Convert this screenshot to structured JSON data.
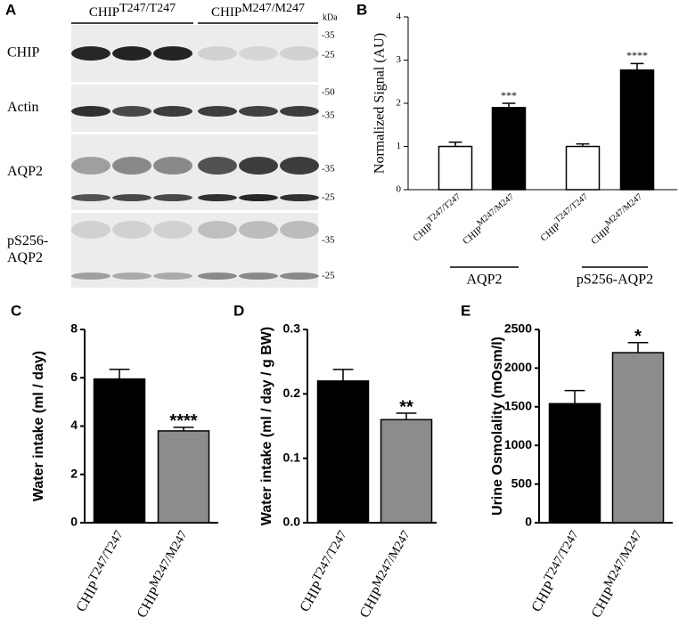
{
  "blot": {
    "panel": "A",
    "unit": "kDa",
    "groups": [
      {
        "base": "CHIP",
        "sup": "T247/T247"
      },
      {
        "base": "CHIP",
        "sup": "M247/M247"
      }
    ],
    "rows": [
      {
        "label": [
          "CHIP"
        ],
        "markers": [
          "-35",
          "-25"
        ]
      },
      {
        "label": [
          "Actin"
        ],
        "markers": [
          "-50",
          "-35"
        ]
      },
      {
        "label": [
          "AQP2"
        ],
        "markers": [
          "-35",
          "-25"
        ]
      },
      {
        "label": [
          "pS256-",
          "AQP2"
        ],
        "markers": [
          "-35",
          "-25"
        ]
      }
    ]
  },
  "chart_data": [
    {
      "type": "bar",
      "panel": "B",
      "y_label": "Normalized Signal (AU)",
      "categories": [
        {
          "base": "CHIP",
          "sup": "T247/T247"
        },
        {
          "base": "CHIP",
          "sup": "M247/M247"
        },
        {
          "base": "CHIP",
          "sup": "T247/T247"
        },
        {
          "base": "CHIP",
          "sup": "M247/M247"
        }
      ],
      "values": [
        1.0,
        1.9,
        1.0,
        2.77
      ],
      "errors": [
        0.1,
        0.1,
        0.06,
        0.15
      ],
      "colors": [
        "#ffffff",
        "#000000",
        "#ffffff",
        "#000000"
      ],
      "significance": [
        null,
        "***",
        null,
        "****"
      ],
      "group_labels": [
        "AQP2",
        "pS256-AQP2"
      ],
      "ylim": [
        0,
        4
      ],
      "yticks": [
        0,
        1,
        2,
        3,
        4
      ]
    },
    {
      "type": "bar",
      "panel": "C",
      "y_label": "Water intake (ml / day)",
      "categories": [
        {
          "base": "CHIP",
          "sup": "T247/T247"
        },
        {
          "base": "CHIP",
          "sup": "M247/M247"
        }
      ],
      "values": [
        5.95,
        3.8
      ],
      "errors": [
        0.4,
        0.15
      ],
      "colors": [
        "#000000",
        "#8c8c8c"
      ],
      "significance": [
        null,
        "****"
      ],
      "ylim": [
        0,
        8
      ],
      "yticks": [
        0,
        2,
        4,
        6,
        8
      ]
    },
    {
      "type": "bar",
      "panel": "D",
      "y_label": "Water intake (ml / day / g BW)",
      "categories": [
        {
          "base": "CHIP",
          "sup": "T247/T247"
        },
        {
          "base": "CHIP",
          "sup": "M247/M247"
        }
      ],
      "values": [
        0.22,
        0.16
      ],
      "errors": [
        0.018,
        0.01
      ],
      "colors": [
        "#000000",
        "#8c8c8c"
      ],
      "significance": [
        null,
        "**"
      ],
      "ylim": [
        0,
        0.3
      ],
      "yticks": [
        {
          "value": 0,
          "label": "0.0"
        },
        0.1,
        0.2,
        0.3
      ]
    },
    {
      "type": "bar",
      "panel": "E",
      "y_label": "Urine Osmolality (mOsm/l)",
      "categories": [
        {
          "base": "CHIP",
          "sup": "T247/T247"
        },
        {
          "base": "CHIP",
          "sup": "M247/M247"
        }
      ],
      "values": [
        1540,
        2200
      ],
      "errors": [
        170,
        130
      ],
      "colors": [
        "#000000",
        "#8c8c8c"
      ],
      "significance": [
        null,
        "*"
      ],
      "ylim": [
        0,
        2500
      ],
      "yticks": [
        0,
        500,
        1000,
        1500,
        2000,
        2500
      ]
    }
  ]
}
